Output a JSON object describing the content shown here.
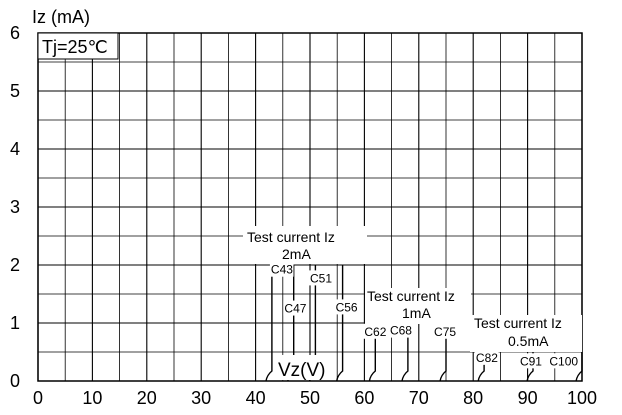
{
  "chart_data": {
    "type": "line",
    "ylabel": "Iz (mA)",
    "xlabel": "Vz(V)",
    "xlim": [
      0,
      100
    ],
    "ylim": [
      0,
      6
    ],
    "x_ticks": [
      "0",
      "10",
      "20",
      "30",
      "40",
      "50",
      "60",
      "70",
      "80",
      "90",
      "100"
    ],
    "y_ticks": [
      "0",
      "1",
      "2",
      "3",
      "4",
      "5",
      "6"
    ],
    "grid": true,
    "annotation": "Tj=25℃",
    "test_groups": [
      {
        "heading": "Test current Iz",
        "value": "2mA",
        "current_mA": 2
      },
      {
        "heading": "Test current Iz",
        "value": "1mA",
        "current_mA": 1
      },
      {
        "heading": "Test current Iz",
        "value": "0.5mA",
        "current_mA": 0.5
      }
    ],
    "series": [
      {
        "name": "C43",
        "vz": 43,
        "iz_max": 2
      },
      {
        "name": "C47",
        "vz": 47,
        "iz_max": 2
      },
      {
        "name": "C51",
        "vz": 51,
        "iz_max": 2
      },
      {
        "name": "C56",
        "vz": 56,
        "iz_max": 2
      },
      {
        "name": "C62",
        "vz": 62,
        "iz_max": 1
      },
      {
        "name": "C68",
        "vz": 68,
        "iz_max": 1
      },
      {
        "name": "C75",
        "vz": 75,
        "iz_max": 1
      },
      {
        "name": "C82",
        "vz": 82,
        "iz_max": 0.5
      },
      {
        "name": "C91",
        "vz": 91,
        "iz_max": 0.5
      },
      {
        "name": "C100",
        "vz": 100,
        "iz_max": 0.5
      }
    ]
  }
}
